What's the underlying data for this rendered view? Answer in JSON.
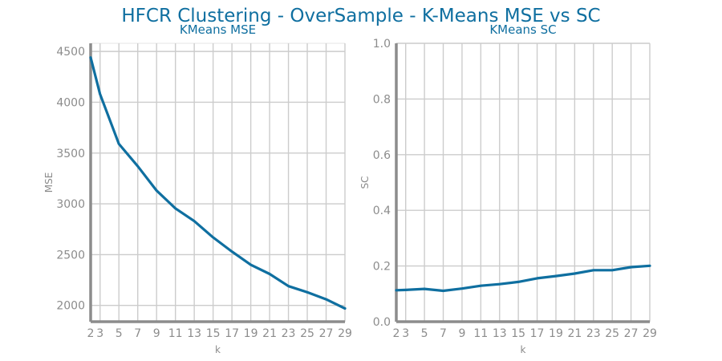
{
  "title": "HFCR Clustering - OverSample - K-Means MSE vs SC",
  "colors": {
    "series": "#0f6fa0",
    "title": "#0f6fa0",
    "grid": "#cccccc",
    "axis": "#8c8c8c"
  },
  "chart_data": [
    {
      "type": "line",
      "title": "KMeans MSE",
      "xlabel": "k",
      "ylabel": "MSE",
      "grid": true,
      "x": [
        2,
        3,
        5,
        7,
        9,
        11,
        13,
        15,
        17,
        19,
        21,
        23,
        25,
        27,
        29
      ],
      "xticks": [
        2,
        3,
        5,
        7,
        9,
        11,
        13,
        15,
        17,
        19,
        21,
        23,
        25,
        27,
        29
      ],
      "xlim": [
        2,
        29
      ],
      "yticks": [
        2000,
        2500,
        3000,
        3500,
        4000,
        4500
      ],
      "ylim": [
        1840,
        4580
      ],
      "values": [
        4440,
        4080,
        3590,
        3370,
        3130,
        2955,
        2830,
        2670,
        2530,
        2400,
        2310,
        2190,
        2130,
        2060,
        1970
      ]
    },
    {
      "type": "line",
      "title": "KMeans SC",
      "xlabel": "k",
      "ylabel": "SC",
      "grid": true,
      "x": [
        2,
        3,
        5,
        7,
        9,
        11,
        13,
        15,
        17,
        19,
        21,
        23,
        25,
        27,
        29
      ],
      "xticks": [
        2,
        3,
        5,
        7,
        9,
        11,
        13,
        15,
        17,
        19,
        21,
        23,
        25,
        27,
        29
      ],
      "xlim": [
        2,
        29
      ],
      "yticks": [
        0.0,
        0.2,
        0.4,
        0.6,
        0.8,
        1.0
      ],
      "ytick_labels": [
        "0.0",
        "0.2",
        "0.4",
        "0.6",
        "0.8",
        "1.0"
      ],
      "ylim": [
        0,
        1
      ],
      "values": [
        0.113,
        0.114,
        0.118,
        0.111,
        0.119,
        0.129,
        0.135,
        0.143,
        0.156,
        0.164,
        0.173,
        0.185,
        0.185,
        0.196,
        0.201
      ]
    }
  ]
}
